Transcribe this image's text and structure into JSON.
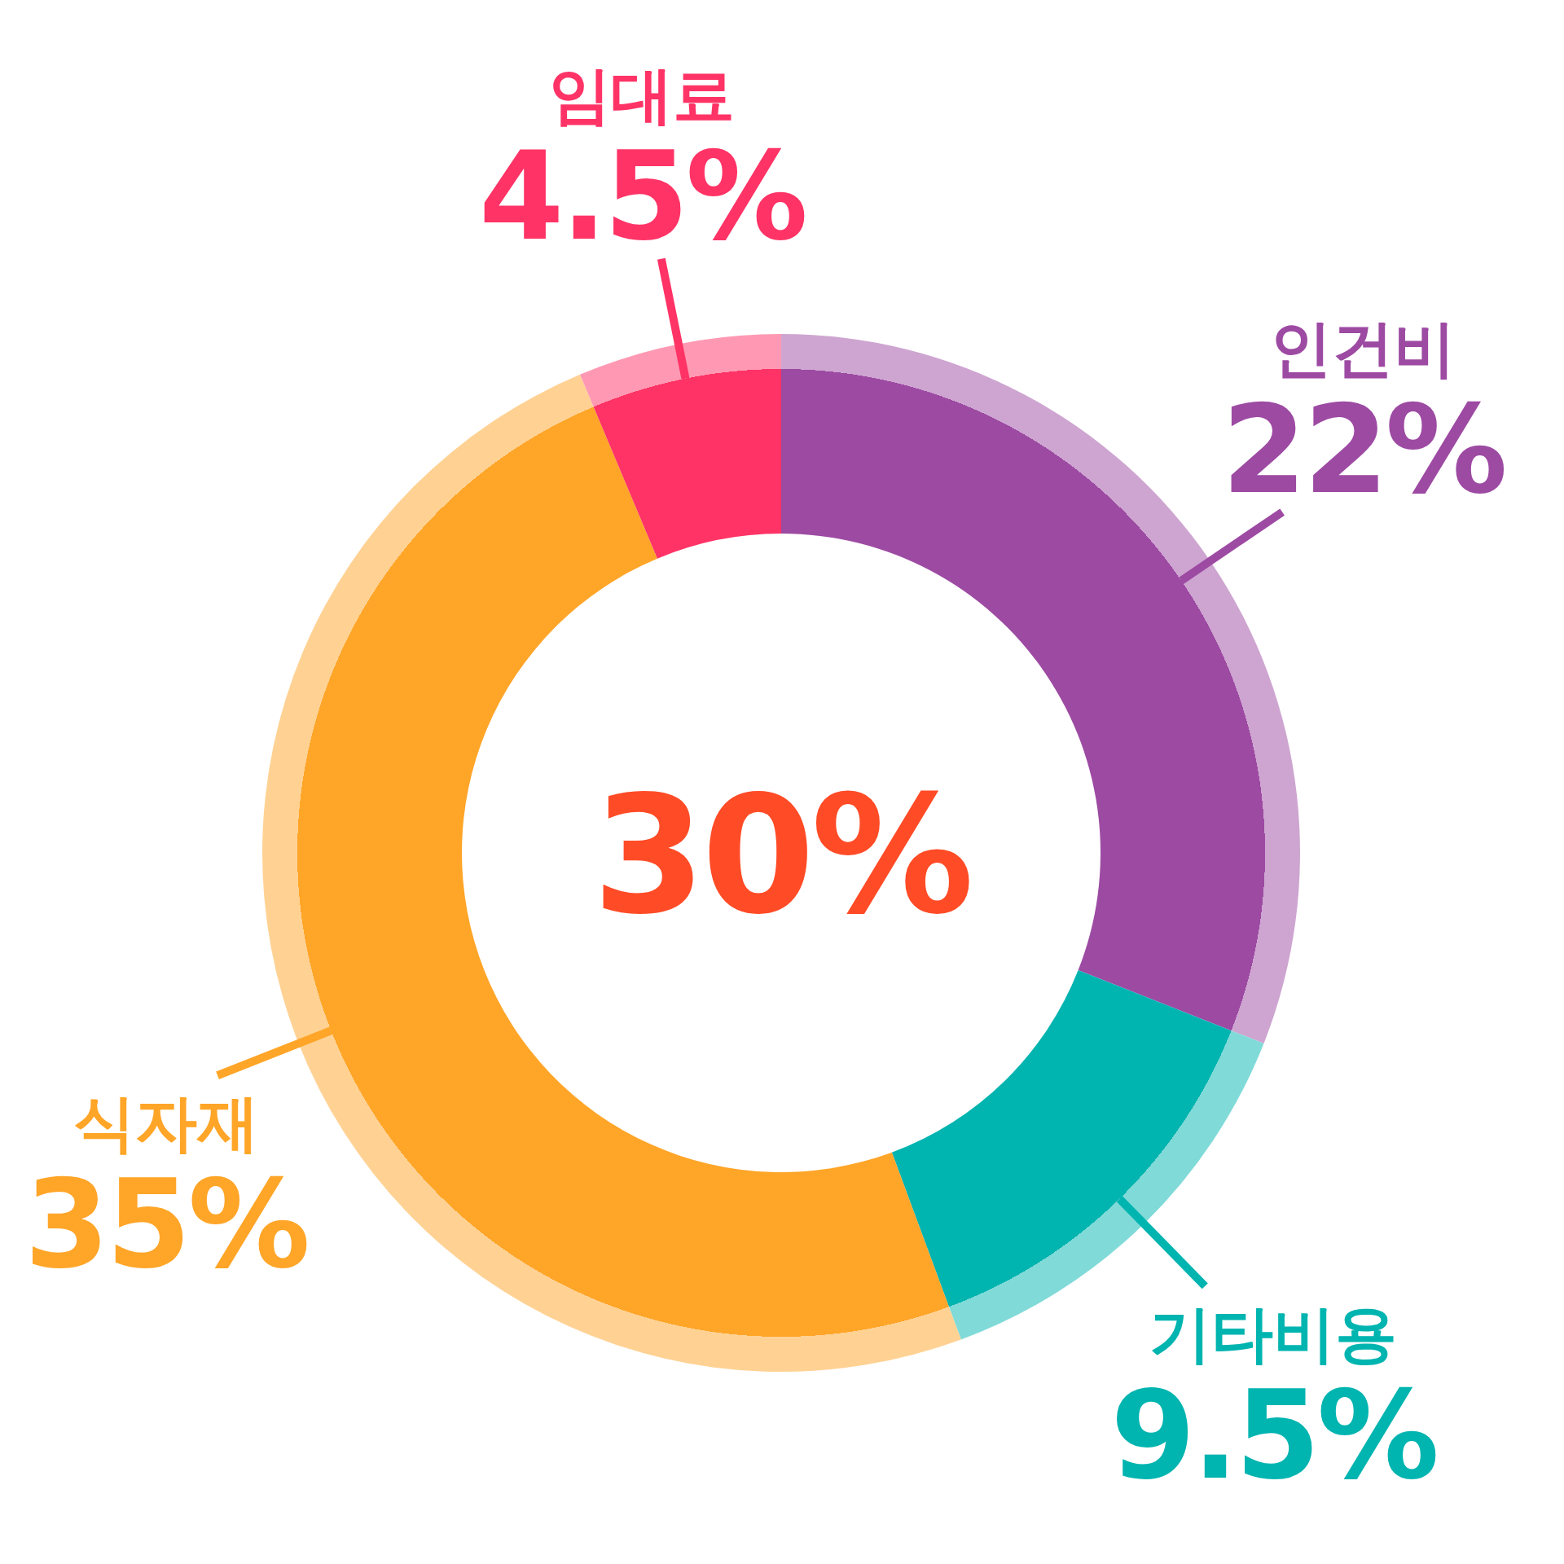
{
  "chart_data": {
    "type": "donut",
    "categories": [
      "인건비",
      "기타비용",
      "식자재",
      "임대료"
    ],
    "values": [
      22,
      9.5,
      35,
      4.5
    ],
    "value_labels": [
      "22%",
      "9.5%",
      "35%",
      "4.5%"
    ],
    "colors": [
      "#9d4aa3",
      "#00b4b0",
      "#ffa528",
      "#ff3366"
    ],
    "annotations": [
      "30%"
    ]
  }
}
